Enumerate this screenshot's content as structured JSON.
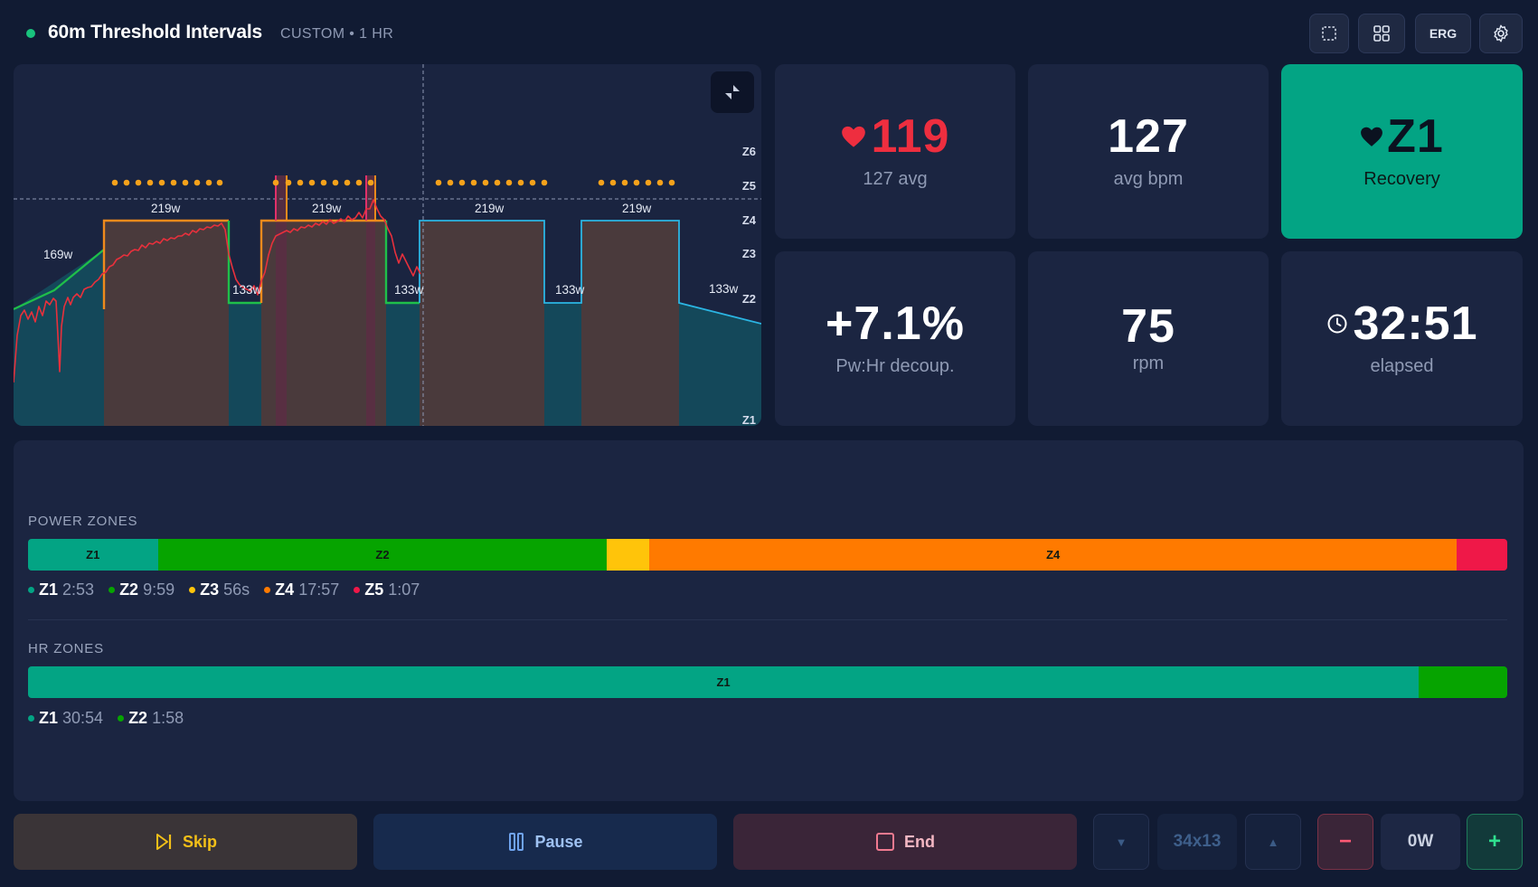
{
  "header": {
    "title": "60m Threshold Intervals",
    "subtitle": "CUSTOM • 1 HR",
    "erg_label": "ERG"
  },
  "chart": {
    "zone_labels": [
      "Z6",
      "Z5",
      "Z4",
      "Z3",
      "Z2",
      "Z1"
    ],
    "watt_labels": [
      "169w",
      "219w",
      "133w",
      "219w",
      "133w",
      "219w",
      "133w",
      "219w",
      "133w"
    ],
    "colors": {
      "bg": "#1a2440",
      "interval_fill": "#4a3a3c",
      "recovery_fill": "#14485a",
      "cyan_line": "#2bb5e3",
      "orange_line": "#f08a1c",
      "green_line": "#1fbf4a",
      "hr_line": "#e8303c",
      "dots": "#f5a21b"
    }
  },
  "metrics": {
    "hr": {
      "value": "119",
      "label": "127 avg",
      "color": "#ee2e3f"
    },
    "avg_bpm": {
      "value": "127",
      "label": "avg bpm"
    },
    "hr_zone": {
      "value": "Z1",
      "label": "Recovery",
      "bg": "#03a484"
    },
    "decoupling": {
      "value": "+7.1%",
      "label": "Pw:Hr decoup."
    },
    "cadence": {
      "value": "75",
      "label": "rpm"
    },
    "elapsed": {
      "value": "32:51",
      "label": "elapsed"
    }
  },
  "power_zones": {
    "title": "POWER ZONES",
    "segments": [
      {
        "name": "Z1",
        "label": "Z1",
        "seconds": 173,
        "color": "#03a484"
      },
      {
        "name": "Z2",
        "label": "Z2",
        "seconds": 599,
        "color": "#06a400"
      },
      {
        "name": "Z3",
        "label": "",
        "seconds": 56,
        "color": "#ffc40a"
      },
      {
        "name": "Z4",
        "label": "Z4",
        "seconds": 1077,
        "color": "#ff7a00"
      },
      {
        "name": "Z5",
        "label": "",
        "seconds": 67,
        "color": "#ef1848"
      }
    ],
    "legend": [
      {
        "zone": "Z1",
        "time": "2:53",
        "color": "#03a484"
      },
      {
        "zone": "Z2",
        "time": "9:59",
        "color": "#06a400"
      },
      {
        "zone": "Z3",
        "time": "56s",
        "color": "#ffc40a"
      },
      {
        "zone": "Z4",
        "time": "17:57",
        "color": "#ff7a00"
      },
      {
        "zone": "Z5",
        "time": "1:07",
        "color": "#ef1848"
      }
    ]
  },
  "hr_zones": {
    "title": "HR ZONES",
    "segments": [
      {
        "name": "Z1",
        "label": "Z1",
        "seconds": 1854,
        "color": "#03a484"
      },
      {
        "name": "Z2",
        "label": "",
        "seconds": 118,
        "color": "#06a400"
      }
    ],
    "legend": [
      {
        "zone": "Z1",
        "time": "30:54",
        "color": "#03a484"
      },
      {
        "zone": "Z2",
        "time": "1:58",
        "color": "#06a400"
      }
    ]
  },
  "controls": {
    "skip_label": "Skip",
    "pause_label": "Pause",
    "end_label": "End",
    "interval_value": "34x13",
    "power_value": "0W",
    "minus_label": "−",
    "plus_label": "+",
    "down_glyph": "▼",
    "up_glyph": "▲"
  }
}
